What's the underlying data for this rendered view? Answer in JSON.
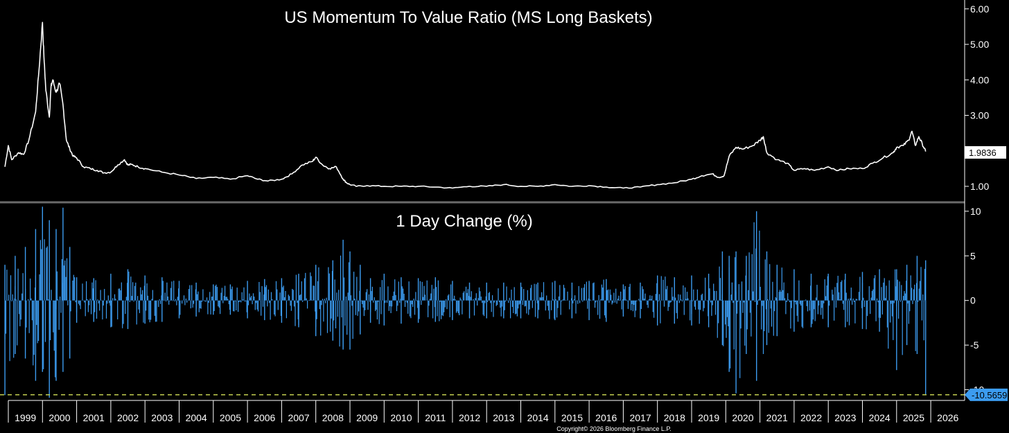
{
  "colors": {
    "background": "#000000",
    "ratio_line": "#ffffff",
    "change_bars": "#3c9cf0",
    "min_line": "#d4e157",
    "axis": "#ffffff",
    "divider": "#6a6a6a",
    "min_tag_fill": "#3c9cf0"
  },
  "copyright": "Copyright© 2026 Bloomberg Finance L.P.",
  "x_axis": {
    "labels": [
      "1999",
      "2000",
      "2001",
      "2002",
      "2003",
      "2004",
      "2005",
      "2006",
      "2007",
      "2008",
      "2009",
      "2010",
      "2011",
      "2012",
      "2013",
      "2014",
      "2015",
      "2016",
      "2017",
      "2018",
      "2019",
      "2020",
      "2021",
      "2022",
      "2023",
      "2024",
      "2025",
      "2026"
    ]
  },
  "chart_data": [
    {
      "type": "line",
      "title": "US Momentum To Value Ratio (MS Long Baskets)",
      "ylim": [
        0.55,
        6.25
      ],
      "y_ticks": [
        "1.00",
        "2.00",
        "3.00",
        "4.00",
        "5.00",
        "6.00"
      ],
      "last_value": "1.9836",
      "series": [
        {
          "x": [
            1998.9,
            1999.0,
            1999.1,
            1999.3,
            1999.45,
            1999.6,
            1999.8,
            1999.9,
            2000.0,
            2000.05,
            2000.1,
            2000.2,
            2000.25,
            2000.3,
            2000.4,
            2000.5,
            2000.6,
            2000.7,
            2000.8,
            2000.9,
            2001.0,
            2001.2,
            2001.4,
            2001.6,
            2001.8,
            2002.0,
            2002.2,
            2002.4,
            2002.5,
            2002.6,
            2002.8,
            2003.0,
            2003.5,
            2004.0,
            2004.5,
            2005.0,
            2005.5,
            2006.0,
            2006.3,
            2006.6,
            2007.0,
            2007.3,
            2007.6,
            2007.9,
            2008.0,
            2008.2,
            2008.4,
            2008.6,
            2008.8,
            2008.9,
            2009.0,
            2009.2,
            2009.5,
            2010.0,
            2010.5,
            2011.0,
            2011.5,
            2012.0,
            2012.5,
            2013.0,
            2013.5,
            2014.0,
            2014.5,
            2015.0,
            2015.5,
            2016.0,
            2016.5,
            2017.0,
            2017.5,
            2018.0,
            2018.5,
            2019.0,
            2019.3,
            2019.6,
            2019.8,
            2019.95,
            2020.1,
            2020.3,
            2020.5,
            2020.8,
            2021.0,
            2021.1,
            2021.2,
            2021.5,
            2021.8,
            2022.0,
            2022.3,
            2022.6,
            2023.0,
            2023.3,
            2023.6,
            2024.0,
            2024.3,
            2024.6,
            2024.9,
            2025.0,
            2025.2,
            2025.35,
            2025.45,
            2025.55,
            2025.65,
            2025.75,
            2025.85
          ],
          "values": [
            1.55,
            2.15,
            1.75,
            1.95,
            1.9,
            2.3,
            3.1,
            4.3,
            5.62,
            4.5,
            3.7,
            2.95,
            3.8,
            4.0,
            3.65,
            3.9,
            3.3,
            2.3,
            2.05,
            1.85,
            1.8,
            1.55,
            1.5,
            1.45,
            1.38,
            1.4,
            1.6,
            1.75,
            1.6,
            1.62,
            1.55,
            1.5,
            1.4,
            1.32,
            1.22,
            1.25,
            1.2,
            1.3,
            1.2,
            1.15,
            1.2,
            1.35,
            1.6,
            1.7,
            1.82,
            1.6,
            1.5,
            1.55,
            1.2,
            1.1,
            1.05,
            1.0,
            1.02,
            1.0,
            1.0,
            1.0,
            0.98,
            0.95,
            1.0,
            1.0,
            1.05,
            1.0,
            1.0,
            1.05,
            1.0,
            1.02,
            0.98,
            0.95,
            0.98,
            1.05,
            1.1,
            1.2,
            1.3,
            1.35,
            1.25,
            1.3,
            1.85,
            2.1,
            2.05,
            2.15,
            2.3,
            2.4,
            1.95,
            1.75,
            1.65,
            1.45,
            1.5,
            1.45,
            1.55,
            1.45,
            1.5,
            1.5,
            1.65,
            1.8,
            1.95,
            2.1,
            2.15,
            2.3,
            2.55,
            2.15,
            2.4,
            2.2,
            1.98
          ]
        }
      ]
    },
    {
      "type": "bar",
      "title": "1 Day Change (%)",
      "ylim": [
        -11.2,
        11.0
      ],
      "y_ticks": [
        "10",
        "5",
        "0",
        "-5",
        "-10"
      ],
      "min_value": "-10.5659",
      "series": [
        {
          "x": [
            1998.9,
            1999.2,
            1999.5,
            1999.8,
            2000.0,
            2000.2,
            2000.4,
            2000.6,
            2000.8,
            2001.0,
            2001.5,
            2002.0,
            2002.5,
            2003.0,
            2003.5,
            2004.0,
            2004.5,
            2005.0,
            2005.5,
            2006.0,
            2006.5,
            2007.0,
            2007.5,
            2008.0,
            2008.5,
            2008.8,
            2009.0,
            2009.3,
            2009.6,
            2010.0,
            2010.5,
            2011.0,
            2011.5,
            2012.0,
            2012.5,
            2013.0,
            2013.5,
            2014.0,
            2014.5,
            2015.0,
            2015.5,
            2016.0,
            2016.5,
            2017.0,
            2017.5,
            2018.0,
            2018.5,
            2019.0,
            2019.5,
            2019.9,
            2020.1,
            2020.3,
            2020.6,
            2020.9,
            2021.2,
            2021.5,
            2022.0,
            2022.5,
            2023.0,
            2023.5,
            2024.0,
            2024.5,
            2025.0,
            2025.3,
            2025.6,
            2025.85
          ],
          "high": [
            4.0,
            5.0,
            6.0,
            8.0,
            10.5,
            9.0,
            8.0,
            10.4,
            6.0,
            2.6,
            2.5,
            3.0,
            3.5,
            2.8,
            2.6,
            2.2,
            2.0,
            1.8,
            1.8,
            2.2,
            2.4,
            2.5,
            3.0,
            4.0,
            4.5,
            6.8,
            5.5,
            4.0,
            2.5,
            3.0,
            2.6,
            2.5,
            2.6,
            2.2,
            2.0,
            2.0,
            2.0,
            2.0,
            2.0,
            2.2,
            2.0,
            2.2,
            2.4,
            1.8,
            2.0,
            2.8,
            2.6,
            2.8,
            3.0,
            5.5,
            5.0,
            5.5,
            5.0,
            10.0,
            5.5,
            4.0,
            3.5,
            3.0,
            3.0,
            3.0,
            3.2,
            3.5,
            3.5,
            4.0,
            5.0,
            4.5
          ],
          "low": [
            -10.6,
            -6.0,
            -6.5,
            -9.0,
            -8.0,
            -10.9,
            -9.0,
            -8.0,
            -6.5,
            -2.5,
            -2.4,
            -3.0,
            -3.2,
            -2.6,
            -2.4,
            -2.0,
            -1.8,
            -1.6,
            -1.6,
            -2.0,
            -2.2,
            -2.5,
            -3.0,
            -4.0,
            -4.5,
            -5.5,
            -5.5,
            -3.8,
            -2.5,
            -2.8,
            -2.6,
            -2.5,
            -2.4,
            -2.2,
            -2.0,
            -2.0,
            -2.0,
            -2.0,
            -2.0,
            -2.2,
            -2.0,
            -2.2,
            -2.4,
            -1.8,
            -2.0,
            -2.8,
            -2.6,
            -2.8,
            -3.0,
            -5.0,
            -8.0,
            -10.4,
            -6.0,
            -9.0,
            -5.0,
            -4.0,
            -3.5,
            -3.0,
            -3.0,
            -3.0,
            -3.2,
            -3.5,
            -7.8,
            -5.0,
            -6.0,
            -10.5
          ]
        }
      ]
    }
  ]
}
